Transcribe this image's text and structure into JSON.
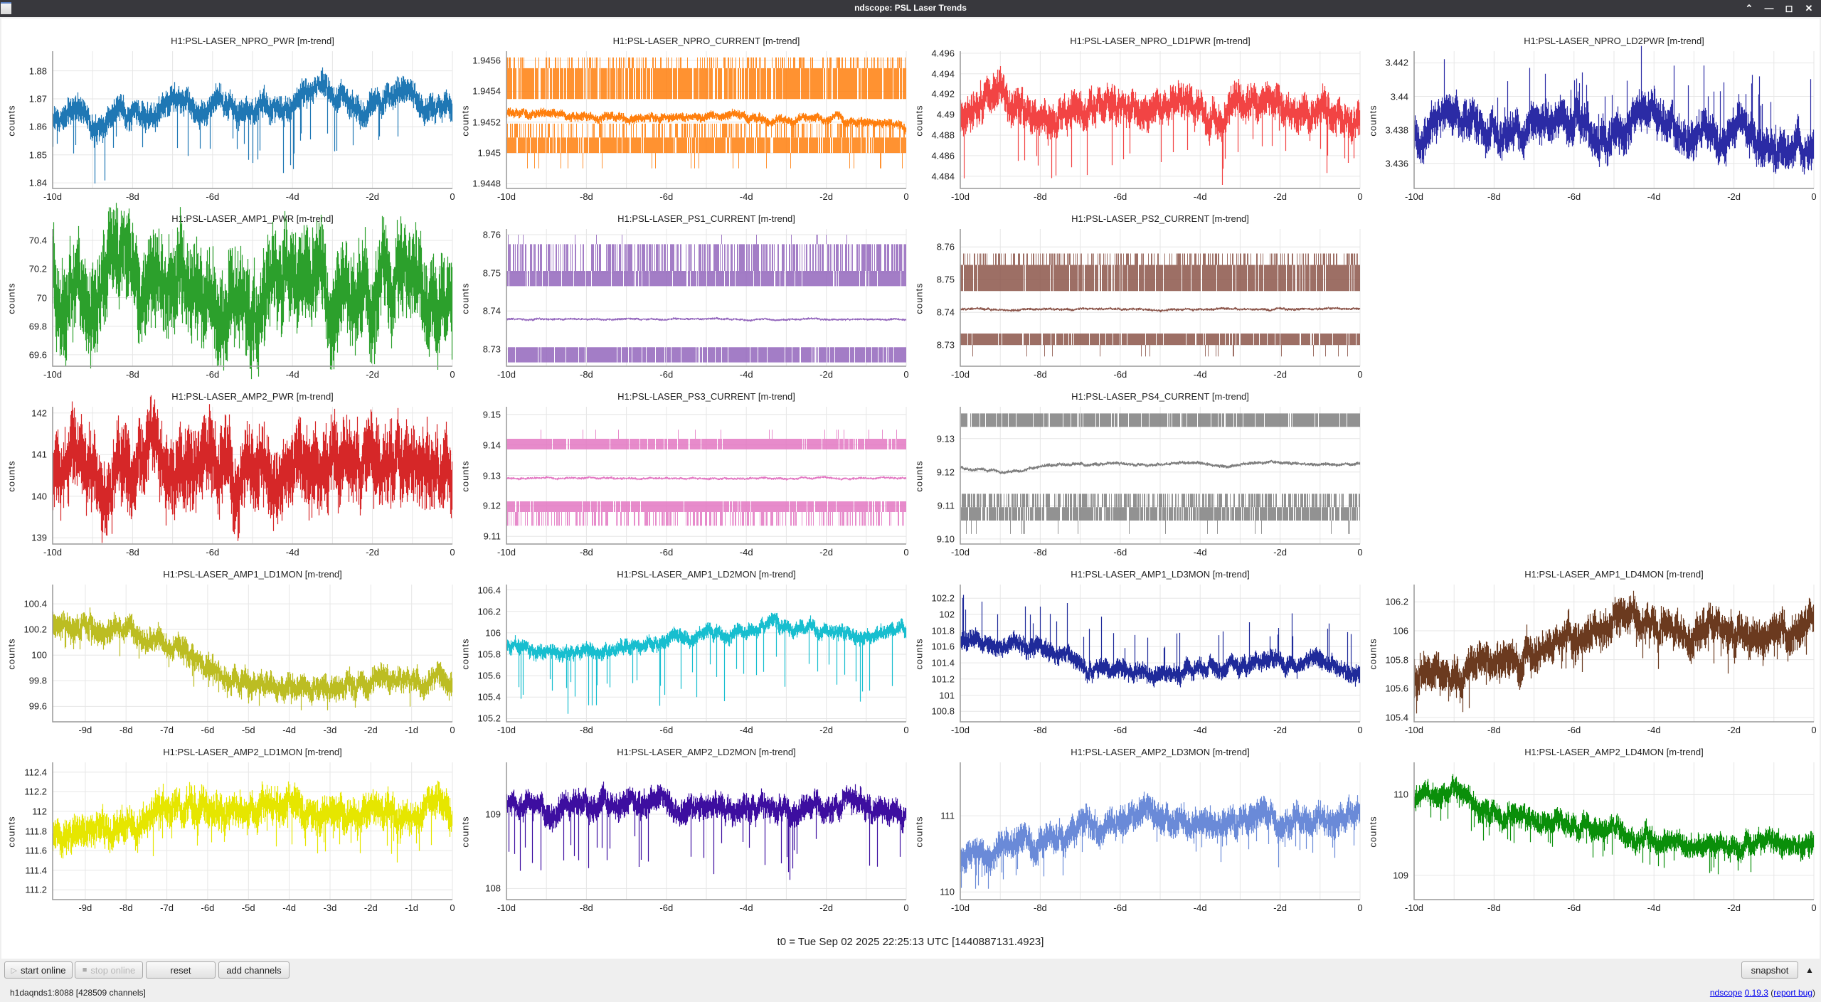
{
  "window": {
    "title": "ndscope: PSL Laser Trends",
    "buttons": [
      "keep-above",
      "minimize",
      "maximize",
      "close"
    ]
  },
  "t0_label": "t0 = Tue Sep 02 2025 22:25:13 UTC [1440887131.4923]",
  "toolbar": {
    "start_online": "start online",
    "stop_online": "stop online",
    "reset": "reset",
    "add_channels": "add channels",
    "snapshot": "snapshot"
  },
  "status": {
    "server": "h1daqnds1:8088  [428509 channels]",
    "app_link": "ndscope",
    "version_link": "0.19.3",
    "report_link": "report bug"
  },
  "chart_data": [
    {
      "title": "H1:PSL-LASER_NPRO_PWR [m-trend]",
      "type": "line",
      "ylabel": "counts",
      "color": "#1f77b4",
      "xlim": [
        -10,
        0
      ],
      "xticks": [
        "-10d",
        "-8d",
        "-6d",
        "-4d",
        "-2d",
        "0"
      ],
      "xtick_values": [
        -10,
        -8,
        -6,
        -4,
        -2,
        0
      ],
      "ylim": [
        1.838,
        1.887
      ],
      "yticks": [
        "1.84",
        "1.85",
        "1.86",
        "1.87",
        "1.88"
      ],
      "values": [
        1.863,
        1.868,
        1.858,
        1.866,
        1.864,
        1.865,
        1.87,
        1.866,
        1.868,
        1.864,
        1.87,
        1.866,
        1.872,
        1.875,
        1.868,
        1.866,
        1.872,
        1.87,
        1.866,
        1.868
      ],
      "spread": 0.005,
      "dip": 0.018
    },
    {
      "title": "H1:PSL-LASER_NPRO_CURRENT [m-trend]",
      "type": "line",
      "ylabel": "counts",
      "color": "#ff7f0e",
      "xlim": [
        -10,
        0
      ],
      "xticks": [
        "-10d",
        "-8d",
        "-6d",
        "-4d",
        "-2d",
        "0"
      ],
      "xtick_values": [
        -10,
        -8,
        -6,
        -4,
        -2,
        0
      ],
      "ylim": [
        1.94477,
        1.94566
      ],
      "yticks": [
        "1.9448",
        "1.945",
        "1.9452",
        "1.9454",
        "1.9456"
      ],
      "values": [
        1.94526,
        1.94525,
        1.94523,
        1.94522,
        1.94524,
        1.94525,
        1.94524,
        1.94522,
        1.9452,
        1.94517
      ],
      "spread": 3e-05,
      "dip": 0,
      "bands": [
        {
          "range": [
            1.94535,
            1.94555
          ],
          "density": 0.85
        },
        {
          "range": [
            1.94555,
            1.94562
          ],
          "density": 0.3
        },
        {
          "range": [
            1.945,
            1.9451
          ],
          "density": 0.9
        },
        {
          "range": [
            1.9451,
            1.94519
          ],
          "density": 0.35
        },
        {
          "range": [
            1.9449,
            1.945
          ],
          "density": 0.04
        }
      ]
    },
    {
      "title": "H1:PSL-LASER_NPRO_LD1PWR [m-trend]",
      "type": "line",
      "ylabel": "counts",
      "color": "#f24444",
      "xlim": [
        -10,
        0
      ],
      "xticks": [
        "-10d",
        "-8d",
        "-6d",
        "-4d",
        "-2d",
        "0"
      ],
      "xtick_values": [
        -10,
        -8,
        -6,
        -4,
        -2,
        0
      ],
      "ylim": [
        4.4828,
        4.4962
      ],
      "yticks": [
        "4.484",
        "4.486",
        "4.488",
        "4.49",
        "4.492",
        "4.494",
        "4.496"
      ],
      "values": [
        4.4895,
        4.4915,
        4.4905,
        4.49,
        4.491,
        4.4905,
        4.491,
        4.49,
        4.4905,
        4.491,
        4.49,
        4.4905
      ],
      "spread": 0.0018,
      "dip": 0.005
    },
    {
      "title": "H1:PSL-LASER_NPRO_LD2PWR [m-trend]",
      "type": "line",
      "ylabel": "counts",
      "color": "#2b2ba5",
      "xlim": [
        -10,
        0
      ],
      "xticks": [
        "-10d",
        "-8d",
        "-6d",
        "-4d",
        "-2d",
        "0"
      ],
      "xtick_values": [
        -10,
        -8,
        -6,
        -4,
        -2,
        0
      ],
      "ylim": [
        3.4345,
        3.4427
      ],
      "yticks": [
        "3.436",
        "3.438",
        "3.44",
        "3.442"
      ],
      "values": [
        3.4375,
        3.4395,
        3.4375,
        3.4378,
        3.439,
        3.4378,
        3.438,
        3.4385,
        3.4375,
        3.438,
        3.437,
        3.4372
      ],
      "spread": 0.0012,
      "dip": -0.003
    },
    {
      "title": "H1:PSL-LASER_AMP1_PWR [m-trend]",
      "type": "line",
      "ylabel": "counts",
      "color": "#2ca02c",
      "xlim": [
        -10,
        0
      ],
      "xticks": [
        "-10d",
        "-8d",
        "-6d",
        "-4d",
        "-2d",
        "0"
      ],
      "xtick_values": [
        -10,
        -8,
        -6,
        -4,
        -2,
        0
      ],
      "ylim": [
        69.52,
        70.48
      ],
      "yticks": [
        "69.6",
        "69.8",
        "70",
        "70.2",
        "70.4"
      ],
      "values": [
        70.05,
        70.08,
        70.02,
        70.06,
        70.05,
        70.08,
        70.04,
        70.06,
        70.05,
        70.03
      ],
      "spread": 0.33,
      "dip": 0.1
    },
    {
      "title": "H1:PSL-LASER_PS1_CURRENT [m-trend]",
      "type": "line",
      "ylabel": "counts",
      "color": "#9467bd",
      "xlim": [
        -10,
        0
      ],
      "xticks": [
        "-10d",
        "-8d",
        "-6d",
        "-4d",
        "-2d",
        "0"
      ],
      "xtick_values": [
        -10,
        -8,
        -6,
        -4,
        -2,
        0
      ],
      "ylim": [
        8.7255,
        8.7615
      ],
      "yticks": [
        "8.73",
        "8.74",
        "8.75",
        "8.76"
      ],
      "values": [
        8.7378,
        8.7379,
        8.7378,
        8.7379,
        8.7378,
        8.7379,
        8.7378
      ],
      "spread": 0.0003,
      "dip": 0,
      "bands": [
        {
          "range": [
            8.7465,
            8.7505
          ],
          "density": 0.9
        },
        {
          "range": [
            8.7505,
            8.7575
          ],
          "density": 0.5
        },
        {
          "range": [
            8.7265,
            8.7305
          ],
          "density": 0.9
        },
        {
          "range": [
            8.7575,
            8.76
          ],
          "density": 0.02
        }
      ]
    },
    {
      "title": "H1:PSL-LASER_PS2_CURRENT [m-trend]",
      "type": "line",
      "ylabel": "counts",
      "color": "#8c564b",
      "xlim": [
        -10,
        0
      ],
      "xticks": [
        "-10d",
        "-8d",
        "-6d",
        "-4d",
        "-2d",
        "0"
      ],
      "xtick_values": [
        -10,
        -8,
        -6,
        -4,
        -2,
        0
      ],
      "ylim": [
        8.7235,
        8.7655
      ],
      "yticks": [
        "8.73",
        "8.74",
        "8.75",
        "8.76"
      ],
      "values": [
        8.741,
        8.7409,
        8.741,
        8.7409,
        8.741,
        8.741,
        8.7411
      ],
      "spread": 0.0004,
      "dip": 0,
      "bands": [
        {
          "range": [
            8.7465,
            8.7545
          ],
          "density": 0.9
        },
        {
          "range": [
            8.7545,
            8.758
          ],
          "density": 0.35
        },
        {
          "range": [
            8.73,
            8.7335
          ],
          "density": 0.9
        },
        {
          "range": [
            8.7265,
            8.73
          ],
          "density": 0.04
        }
      ]
    },
    {
      "title": "H1:PSL-LASER_AMP2_PWR [m-trend]",
      "type": "line",
      "ylabel": "counts",
      "color": "#d62728",
      "xlim": [
        -10,
        0
      ],
      "xticks": [
        "-10d",
        "-8d",
        "-6d",
        "-4d",
        "-2d",
        "0"
      ],
      "xtick_values": [
        -10,
        -8,
        -6,
        -4,
        -2,
        0
      ],
      "ylim": [
        138.85,
        142.15
      ],
      "yticks": [
        "139",
        "140",
        "141",
        "142"
      ],
      "values": [
        140.75,
        140.7,
        140.75,
        140.7,
        140.72,
        140.7,
        140.68,
        140.7
      ],
      "spread": 0.95,
      "dip": 0.3
    },
    {
      "title": "H1:PSL-LASER_PS3_CURRENT [m-trend]",
      "type": "line",
      "ylabel": "counts",
      "color": "#e377c2",
      "xlim": [
        -10,
        0
      ],
      "xticks": [
        "-10d",
        "-8d",
        "-6d",
        "-4d",
        "-2d",
        "0"
      ],
      "xtick_values": [
        -10,
        -8,
        -6,
        -4,
        -2,
        0
      ],
      "ylim": [
        9.1075,
        9.1525
      ],
      "yticks": [
        "9.11",
        "9.12",
        "9.13",
        "9.14",
        "9.15"
      ],
      "values": [
        9.129,
        9.1291,
        9.129,
        9.1291,
        9.129,
        9.129
      ],
      "spread": 0.0004,
      "dip": 0,
      "bands": [
        {
          "range": [
            9.1385,
            9.142
          ],
          "density": 0.95
        },
        {
          "range": [
            9.118,
            9.1215
          ],
          "density": 0.95
        },
        {
          "range": [
            9.1135,
            9.118
          ],
          "density": 0.35
        },
        {
          "range": [
            9.142,
            9.145
          ],
          "density": 0.04
        }
      ]
    },
    {
      "title": "H1:PSL-LASER_PS4_CURRENT [m-trend]",
      "type": "line",
      "ylabel": "counts",
      "color": "#7f7f7f",
      "xlim": [
        -10,
        0
      ],
      "xticks": [
        "-10d",
        "-8d",
        "-6d",
        "-4d",
        "-2d",
        "0"
      ],
      "xtick_values": [
        -10,
        -8,
        -6,
        -4,
        -2,
        0
      ],
      "ylim": [
        9.0985,
        9.1395
      ],
      "yticks": [
        "9.10",
        "9.11",
        "9.12",
        "9.13"
      ],
      "values": [
        9.1215,
        9.12,
        9.122,
        9.1225,
        9.1222,
        9.1228,
        9.1222,
        9.1228,
        9.1222,
        9.1225
      ],
      "spread": 0.0005,
      "dip": 0,
      "bands": [
        {
          "range": [
            9.1335,
            9.1375
          ],
          "density": 0.9
        },
        {
          "range": [
            9.1055,
            9.1095
          ],
          "density": 0.85
        },
        {
          "range": [
            9.1095,
            9.1135
          ],
          "density": 0.55
        },
        {
          "range": [
            9.1015,
            9.1055
          ],
          "density": 0.04
        }
      ]
    },
    {
      "title": "H1:PSL-LASER_AMP1_LD1MON [m-trend]",
      "type": "line",
      "ylabel": "counts",
      "color": "#bcbd22",
      "xlim": [
        -9.8,
        0
      ],
      "xticks": [
        "-9d",
        "-8d",
        "-7d",
        "-6d",
        "-5d",
        "-4d",
        "-3d",
        "-2d",
        "-1d",
        "0"
      ],
      "xtick_values": [
        -9,
        -8,
        -7,
        -6,
        -5,
        -4,
        -3,
        -2,
        -1,
        0
      ],
      "ylim": [
        99.48,
        100.55
      ],
      "yticks": [
        "99.6",
        "99.8",
        "100",
        "100.2",
        "100.4"
      ],
      "values": [
        100.25,
        100.2,
        100.18,
        100.05,
        99.9,
        99.78,
        99.75,
        99.77,
        99.78,
        99.8,
        99.8
      ],
      "spread": 0.1,
      "dip": 0.12
    },
    {
      "title": "H1:PSL-LASER_AMP1_LD2MON [m-trend]",
      "type": "line",
      "ylabel": "counts",
      "color": "#17becf",
      "xlim": [
        -10,
        0
      ],
      "xticks": [
        "-10d",
        "-8d",
        "-6d",
        "-4d",
        "-2d",
        "0"
      ],
      "xtick_values": [
        -10,
        -8,
        -6,
        -4,
        -2,
        0
      ],
      "ylim": [
        105.17,
        106.45
      ],
      "yticks": [
        "105.2",
        "105.4",
        "105.6",
        "105.8",
        "106",
        "106.2",
        "106.4"
      ],
      "values": [
        105.85,
        105.85,
        105.83,
        105.85,
        105.9,
        105.98,
        106.02,
        106.02,
        106.0,
        106.0,
        106.0
      ],
      "spread": 0.07,
      "dip": 0.55
    },
    {
      "title": "H1:PSL-LASER_AMP1_LD3MON [m-trend]",
      "type": "line",
      "ylabel": "counts",
      "color": "#1f2a9a",
      "xlim": [
        -10,
        0
      ],
      "xticks": [
        "-10d",
        "-8d",
        "-6d",
        "-4d",
        "-2d",
        "0"
      ],
      "xtick_values": [
        -10,
        -8,
        -6,
        -4,
        -2,
        0
      ],
      "ylim": [
        100.67,
        102.37
      ],
      "yticks": [
        "100.8",
        "101",
        "101.2",
        "101.4",
        "101.6",
        "101.8",
        "102",
        "102.2"
      ],
      "values": [
        101.65,
        101.65,
        101.62,
        101.4,
        101.3,
        101.28,
        101.3,
        101.35,
        101.38,
        101.35,
        101.3
      ],
      "spread": 0.12,
      "dip": -0.5
    },
    {
      "title": "H1:PSL-LASER_AMP1_LD4MON [m-trend]",
      "type": "line",
      "ylabel": "counts",
      "color": "#6b3a1f",
      "xlim": [
        -10,
        0
      ],
      "xticks": [
        "-10d",
        "-8d",
        "-6d",
        "-4d",
        "-2d",
        "0"
      ],
      "xtick_values": [
        -10,
        -8,
        -6,
        -4,
        -2,
        0
      ],
      "ylim": [
        105.37,
        106.32
      ],
      "yticks": [
        "105.4",
        "105.6",
        "105.8",
        "106",
        "106.2"
      ],
      "values": [
        105.75,
        105.72,
        105.75,
        105.82,
        105.95,
        106.05,
        106.05,
        106.0,
        105.98,
        105.98,
        106.0
      ],
      "spread": 0.13,
      "dip": 0.15
    },
    {
      "title": "H1:PSL-LASER_AMP2_LD1MON [m-trend]",
      "type": "line",
      "ylabel": "counts",
      "color": "#e6e600",
      "xlim": [
        -9.8,
        0
      ],
      "xticks": [
        "-9d",
        "-8d",
        "-7d",
        "-6d",
        "-5d",
        "-4d",
        "-3d",
        "-2d",
        "-1d",
        "0"
      ],
      "xtick_values": [
        -9,
        -8,
        -7,
        -6,
        -5,
        -4,
        -3,
        -2,
        -1,
        0
      ],
      "ylim": [
        111.1,
        112.5
      ],
      "yticks": [
        "111.2",
        "111.4",
        "111.6",
        "111.8",
        "112",
        "112.2",
        "112.4"
      ],
      "values": [
        111.75,
        111.8,
        111.9,
        111.98,
        112.0,
        112.02,
        112.0,
        111.98,
        112.0,
        112.0,
        112.0
      ],
      "spread": 0.18,
      "dip": 0.3
    },
    {
      "title": "H1:PSL-LASER_AMP2_LD2MON [m-trend]",
      "type": "line",
      "ylabel": "counts",
      "color": "#3d0ea0",
      "xlim": [
        -10,
        0
      ],
      "xticks": [
        "-10d",
        "-8d",
        "-6d",
        "-4d",
        "-2d",
        "0"
      ],
      "xtick_values": [
        -10,
        -8,
        -6,
        -4,
        -2,
        0
      ],
      "ylim": [
        107.85,
        109.7
      ],
      "yticks": [
        "108",
        "109"
      ],
      "values": [
        109.15,
        109.1,
        109.1,
        109.15,
        109.12,
        109.1,
        109.12,
        109.1,
        109.1,
        109.1
      ],
      "spread": 0.18,
      "dip": 0.8
    },
    {
      "title": "H1:PSL-LASER_AMP2_LD3MON [m-trend]",
      "type": "line",
      "ylabel": "counts",
      "color": "#6a8ad8",
      "xlim": [
        -10,
        0
      ],
      "xticks": [
        "-10d",
        "-8d",
        "-6d",
        "-4d",
        "-2d",
        "0"
      ],
      "xtick_values": [
        -10,
        -8,
        -6,
        -4,
        -2,
        0
      ],
      "ylim": [
        109.9,
        111.7
      ],
      "yticks": [
        "110",
        "111"
      ],
      "values": [
        110.45,
        110.55,
        110.65,
        110.8,
        110.9,
        110.95,
        110.95,
        111.0,
        110.95,
        111.0,
        110.95
      ],
      "spread": 0.2,
      "dip": 0.35
    },
    {
      "title": "H1:PSL-LASER_AMP2_LD4MON [m-trend]",
      "type": "line",
      "ylabel": "counts",
      "color": "#0a8f0a",
      "xlim": [
        -10,
        0
      ],
      "xticks": [
        "-10d",
        "-8d",
        "-6d",
        "-4d",
        "-2d",
        "0"
      ],
      "xtick_values": [
        -10,
        -8,
        -6,
        -4,
        -2,
        0
      ],
      "ylim": [
        108.7,
        110.4
      ],
      "yticks": [
        "109",
        "110"
      ],
      "values": [
        109.9,
        110.0,
        109.8,
        109.65,
        109.6,
        109.5,
        109.45,
        109.45,
        109.4,
        109.4,
        109.35
      ],
      "spread": 0.15,
      "dip": 0.25
    }
  ]
}
